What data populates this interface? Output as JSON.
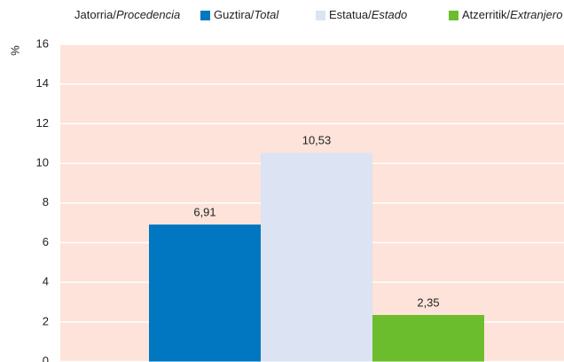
{
  "chart_data": {
    "type": "bar",
    "legend_title": "Jatorria/Procedencia",
    "ylabel": "%",
    "categories": [
      null
    ],
    "series": [
      {
        "name": "Guztira/Total",
        "color": "#0077c0",
        "values": [
          6.91
        ],
        "value_labels": [
          "6,91"
        ]
      },
      {
        "name": "Estatua/Estado",
        "color": "#dce3f2",
        "values": [
          10.53
        ],
        "value_labels": [
          "10,53"
        ]
      },
      {
        "name": "Atzerritik/Extranjero",
        "color": "#6cbd2e",
        "values": [
          2.35
        ],
        "value_labels": [
          "2,35"
        ]
      }
    ],
    "ylim": [
      0,
      16
    ],
    "yticks": [
      0,
      2,
      4,
      6,
      8,
      10,
      12,
      14,
      16
    ],
    "grid": true,
    "legend": "top"
  }
}
